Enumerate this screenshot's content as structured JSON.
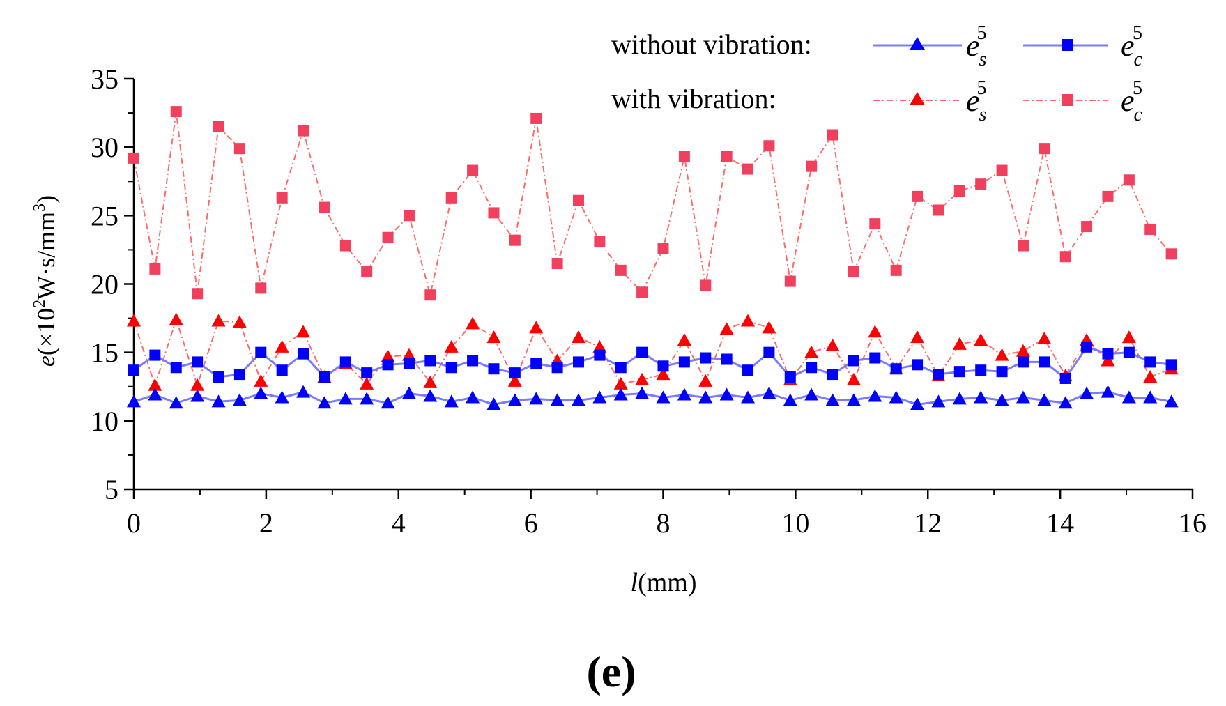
{
  "chart_data": {
    "type": "line",
    "panel_label": "(e)",
    "xlabel": {
      "var": "l",
      "rest": "(mm)"
    },
    "ylabel": {
      "var": "e",
      "open": "(×10",
      "sup1": "2",
      "mid": "W·s/mm",
      "sup2": "3",
      "close": ")"
    },
    "xlim": [
      0,
      16
    ],
    "ylim": [
      5,
      35
    ],
    "xticks": [
      0,
      2,
      4,
      6,
      8,
      10,
      12,
      14,
      16
    ],
    "yticks": [
      5,
      10,
      15,
      20,
      25,
      30,
      35
    ],
    "xtick_labels": [
      "0",
      "2",
      "4",
      "6",
      "8",
      "10",
      "12",
      "14",
      "16"
    ],
    "ytick_labels": [
      "5",
      "10",
      "15",
      "20",
      "25",
      "30",
      "35"
    ],
    "legend": {
      "placement": "top",
      "row1_label": "without vibration:",
      "row2_label": "with vibration:",
      "sym_base": "e",
      "sup": "5",
      "sub_s": "s",
      "sub_c": "c"
    },
    "colors": {
      "blue": "#0000ff",
      "blue_line": "#7b7bff",
      "red": "#ff0000",
      "red_line": "#ff6b6b",
      "pink": "#f0405e"
    },
    "x": [
      0,
      0.32,
      0.64,
      0.96,
      1.28,
      1.6,
      1.92,
      2.24,
      2.56,
      2.88,
      3.2,
      3.52,
      3.84,
      4.16,
      4.48,
      4.8,
      5.12,
      5.44,
      5.76,
      6.08,
      6.4,
      6.72,
      7.04,
      7.36,
      7.68,
      8.0,
      8.32,
      8.64,
      8.96,
      9.28,
      9.6,
      9.92,
      10.24,
      10.56,
      10.88,
      11.2,
      11.52,
      11.84,
      12.16,
      12.48,
      12.8,
      13.12,
      13.44,
      13.76,
      14.08,
      14.4,
      14.72,
      15.04,
      15.36,
      15.68
    ],
    "series": [
      {
        "name": "without vibration e_s^5",
        "key": "es_without",
        "values": [
          11.4,
          11.9,
          11.3,
          11.8,
          11.4,
          11.5,
          12.0,
          11.7,
          12.1,
          11.3,
          11.6,
          11.6,
          11.3,
          12.0,
          11.8,
          11.4,
          11.7,
          11.2,
          11.5,
          11.6,
          11.5,
          11.5,
          11.7,
          11.9,
          12.0,
          11.7,
          11.9,
          11.7,
          11.9,
          11.7,
          12.0,
          11.5,
          11.9,
          11.5,
          11.5,
          11.8,
          11.7,
          11.2,
          11.4,
          11.6,
          11.7,
          11.5,
          11.7,
          11.5,
          11.3,
          12.0,
          12.1,
          11.7,
          11.7,
          11.4
        ]
      },
      {
        "name": "without vibration e_c^5",
        "key": "ec_without",
        "values": [
          13.7,
          14.8,
          13.9,
          14.3,
          13.2,
          13.4,
          15.0,
          13.7,
          14.9,
          13.2,
          14.3,
          13.5,
          14.1,
          14.2,
          14.4,
          13.9,
          14.4,
          13.8,
          13.5,
          14.2,
          13.9,
          14.3,
          14.8,
          13.9,
          15.0,
          14.0,
          14.3,
          14.6,
          14.5,
          13.7,
          15.0,
          13.2,
          13.9,
          13.4,
          14.4,
          14.6,
          13.8,
          14.1,
          13.4,
          13.6,
          13.7,
          13.6,
          14.3,
          14.3,
          13.1,
          15.4,
          14.9,
          15.0,
          14.3,
          14.1
        ]
      },
      {
        "name": "with vibration e_s^5",
        "key": "es_with",
        "values": [
          17.3,
          12.6,
          17.4,
          12.6,
          17.3,
          17.2,
          12.9,
          15.4,
          16.5,
          13.2,
          14.2,
          12.7,
          14.7,
          14.8,
          12.8,
          15.4,
          17.1,
          16.1,
          12.9,
          16.8,
          14.4,
          16.1,
          15.4,
          12.7,
          13.0,
          13.4,
          15.9,
          12.9,
          16.7,
          17.3,
          16.8,
          13.0,
          15.0,
          15.5,
          13.0,
          16.5,
          13.8,
          16.1,
          13.3,
          15.6,
          15.9,
          14.8,
          15.1,
          16.0,
          13.3,
          15.9,
          14.4,
          16.1,
          13.2,
          13.8
        ]
      },
      {
        "name": "with vibration e_c^5",
        "key": "ec_with",
        "values": [
          29.2,
          21.1,
          32.6,
          19.3,
          31.5,
          29.9,
          19.7,
          26.3,
          31.2,
          25.6,
          22.8,
          20.9,
          23.4,
          25.0,
          19.2,
          26.3,
          28.3,
          25.2,
          23.2,
          32.1,
          21.5,
          26.1,
          23.1,
          21.0,
          19.4,
          22.6,
          29.3,
          19.9,
          29.3,
          28.4,
          30.1,
          20.2,
          28.6,
          30.9,
          20.9,
          24.4,
          21.0,
          26.4,
          25.4,
          26.8,
          27.3,
          28.3,
          22.8,
          29.9,
          22.0,
          24.2,
          26.4,
          27.6,
          24.0,
          22.2
        ]
      }
    ]
  }
}
